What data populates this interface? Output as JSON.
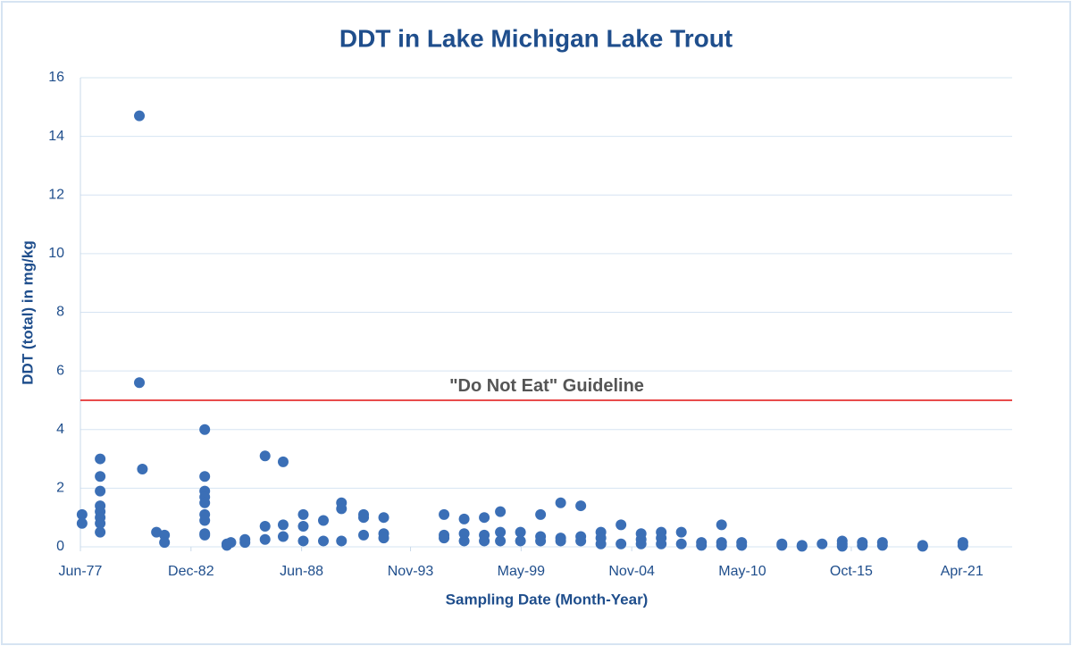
{
  "chart_data": {
    "type": "scatter",
    "title": "DDT in Lake Michigan Lake Trout",
    "x_label": "Sampling Date (Month-Year)",
    "y_label": "DDT (total) in mg/kg",
    "xlim": [
      1977.417,
      2023.75
    ],
    "xticks": [
      {
        "value": 1977.417,
        "label": "Jun-77"
      },
      {
        "value": 1982.917,
        "label": "Dec-82"
      },
      {
        "value": 1988.417,
        "label": "Jun-88"
      },
      {
        "value": 1993.833,
        "label": "Nov-93"
      },
      {
        "value": 1999.333,
        "label": "May-99"
      },
      {
        "value": 2004.833,
        "label": "Nov-04"
      },
      {
        "value": 2010.333,
        "label": "May-10"
      },
      {
        "value": 2015.75,
        "label": "Oct-15"
      },
      {
        "value": 2021.25,
        "label": "Apr-21"
      }
    ],
    "ylim": [
      0,
      16
    ],
    "yticks": [
      0,
      2,
      4,
      6,
      8,
      10,
      12,
      14,
      16
    ],
    "grid": true,
    "reference_line": {
      "value": 5,
      "label": "\"Do Not Eat\" Guideline",
      "color": "#e01010"
    },
    "series": [
      {
        "color": "#3b6fb6",
        "x": [
          1977.5,
          1977.5,
          1978.4,
          1978.4,
          1978.4,
          1978.4,
          1978.4,
          1978.4,
          1978.4,
          1978.4,
          1980.35,
          1980.35,
          1980.5,
          1981.2,
          1981.6,
          1981.6,
          1983.6,
          1983.6,
          1983.6,
          1983.6,
          1983.6,
          1983.6,
          1983.6,
          1983.6,
          1983.6,
          1984.7,
          1984.7,
          1984.9,
          1985.6,
          1985.6,
          1986.6,
          1986.6,
          1986.6,
          1987.5,
          1987.5,
          1987.5,
          1988.5,
          1988.5,
          1988.5,
          1989.5,
          1989.5,
          1990.4,
          1990.4,
          1990.4,
          1991.5,
          1991.5,
          1991.5,
          1992.5,
          1992.5,
          1992.5,
          1995.5,
          1995.5,
          1995.5,
          1996.5,
          1996.5,
          1996.5,
          1997.5,
          1997.5,
          1997.5,
          1998.3,
          1998.3,
          1998.3,
          1999.3,
          1999.3,
          2000.3,
          2000.3,
          2000.3,
          2001.3,
          2001.3,
          2001.3,
          2002.3,
          2002.3,
          2002.3,
          2003.3,
          2003.3,
          2003.3,
          2004.3,
          2004.3,
          2005.3,
          2005.3,
          2005.3,
          2006.3,
          2006.3,
          2006.3,
          2007.3,
          2007.3,
          2008.3,
          2008.3,
          2009.3,
          2009.3,
          2009.3,
          2010.3,
          2010.3,
          2012.3,
          2012.3,
          2013.3,
          2013.3,
          2014.3,
          2015.3,
          2015.3,
          2015.3,
          2016.3,
          2016.3,
          2017.3,
          2017.3,
          2019.3,
          2019.3,
          2021.3,
          2021.3
        ],
        "values": [
          1.1,
          0.8,
          3.0,
          2.4,
          1.9,
          1.4,
          1.2,
          1.0,
          0.8,
          0.5,
          14.7,
          5.6,
          2.65,
          0.5,
          0.4,
          0.15,
          4.0,
          2.4,
          1.9,
          1.7,
          1.5,
          1.1,
          0.9,
          0.45,
          0.4,
          0.1,
          0.05,
          0.15,
          0.25,
          0.15,
          3.1,
          0.7,
          0.25,
          2.9,
          0.75,
          0.35,
          1.1,
          0.7,
          0.2,
          0.9,
          0.2,
          1.5,
          1.3,
          0.2,
          1.1,
          1.0,
          0.4,
          1.0,
          0.45,
          0.3,
          1.1,
          0.4,
          0.3,
          0.95,
          0.45,
          0.2,
          1.0,
          0.4,
          0.2,
          1.2,
          0.5,
          0.2,
          0.5,
          0.2,
          1.1,
          0.35,
          0.2,
          1.5,
          0.3,
          0.2,
          1.4,
          0.35,
          0.2,
          0.5,
          0.3,
          0.1,
          0.75,
          0.1,
          0.45,
          0.25,
          0.1,
          0.5,
          0.3,
          0.1,
          0.5,
          0.1,
          0.15,
          0.05,
          0.75,
          0.15,
          0.05,
          0.15,
          0.05,
          0.1,
          0.05,
          0.05,
          0.02,
          0.1,
          0.2,
          0.1,
          0.02,
          0.15,
          0.05,
          0.15,
          0.05,
          0.05,
          0.02,
          0.15,
          0.05
        ]
      }
    ]
  }
}
